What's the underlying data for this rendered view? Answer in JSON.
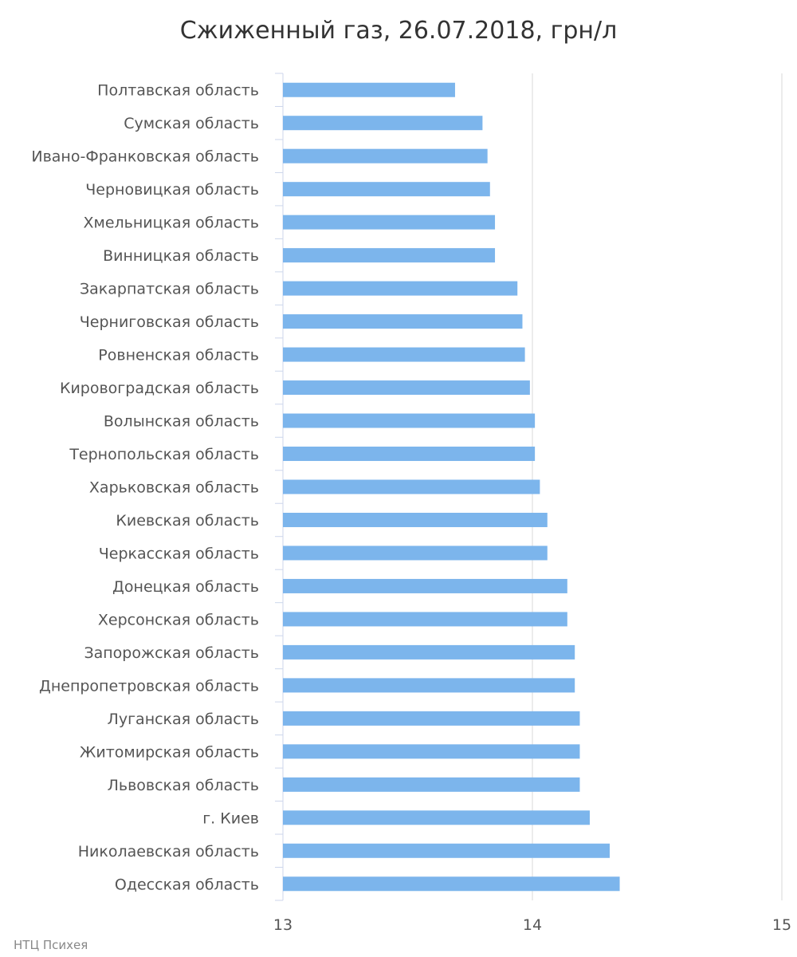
{
  "chart_data": {
    "type": "bar",
    "orientation": "horizontal",
    "title": "Сжиженный газ, 26.07.2018, грн/л",
    "credit": "НТЦ Психея",
    "xlabel": "",
    "ylabel": "",
    "xlim": [
      13,
      15
    ],
    "x_ticks": [
      "13",
      "14",
      "15"
    ],
    "grid": true,
    "legend": "none",
    "bar_color": "#7cb5ec",
    "categories": [
      "Полтавская область",
      "Сумская область",
      "Ивано-Франковская область",
      "Черновицкая область",
      "Хмельницкая область",
      "Винницкая область",
      "Закарпатская область",
      "Черниговская область",
      "Ровненская область",
      "Кировоградская область",
      "Волынская область",
      "Тернопольская область",
      "Харьковская область",
      "Киевская область",
      "Черкасская область",
      "Донецкая область",
      "Херсонская область",
      "Запорожская область",
      "Днепропетровская область",
      "Луганская область",
      "Житомирская область",
      "Львовская область",
      "г. Киев",
      "Николаевская область",
      "Одесская область"
    ],
    "values": [
      13.69,
      13.8,
      13.82,
      13.83,
      13.85,
      13.85,
      13.94,
      13.96,
      13.97,
      13.99,
      14.01,
      14.01,
      14.03,
      14.06,
      14.06,
      14.14,
      14.14,
      14.17,
      14.17,
      14.19,
      14.19,
      14.19,
      14.23,
      14.31,
      14.35
    ]
  }
}
